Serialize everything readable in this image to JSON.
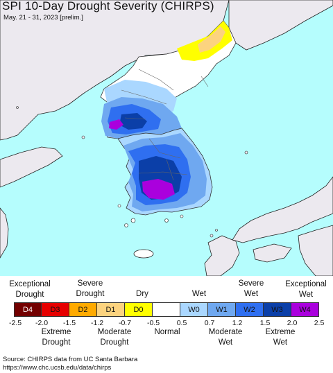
{
  "title": "SPI 10-Day Drought Severity (CHIRPS)",
  "subtitle": "May. 21 - 31, 2023 [prelim.]",
  "legend": {
    "top_labels": [
      {
        "id": "exceptional-drought",
        "text": "Exceptional\nDrought"
      },
      {
        "id": "severe-drought",
        "text": "Severe\nDrought"
      },
      {
        "id": "dry",
        "text": "Dry"
      },
      {
        "id": "wet",
        "text": "Wet"
      },
      {
        "id": "severe-wet",
        "text": "Severe\nWet"
      },
      {
        "id": "exceptional-wet",
        "text": "Exceptional\nWet"
      }
    ],
    "bottom_labels": [
      {
        "id": "extreme-drought",
        "text": "Extreme\nDrought"
      },
      {
        "id": "moderate-drought",
        "text": "Moderate\nDrought"
      },
      {
        "id": "normal",
        "text": "Normal"
      },
      {
        "id": "moderate-wet",
        "text": "Moderate\nWet"
      },
      {
        "id": "extreme-wet",
        "text": "Extreme\nWet"
      }
    ],
    "classes": [
      {
        "label": "D4",
        "color": "#730000",
        "text_color": "#ffffff"
      },
      {
        "label": "D3",
        "color": "#e60000",
        "text_color": "#111111"
      },
      {
        "label": "D2",
        "color": "#ffaa00",
        "text_color": "#111111"
      },
      {
        "label": "D1",
        "color": "#fcd37f",
        "text_color": "#111111"
      },
      {
        "label": "D0",
        "color": "#ffff00",
        "text_color": "#111111"
      },
      {
        "label": "",
        "color": "#ffffff",
        "text_color": "#111111"
      },
      {
        "label": "W0",
        "color": "#aad7ff",
        "text_color": "#111111"
      },
      {
        "label": "W1",
        "color": "#6fa8f0",
        "text_color": "#111111"
      },
      {
        "label": "W2",
        "color": "#2f6ff0",
        "text_color": "#111111"
      },
      {
        "label": "W3",
        "color": "#0b3fa8",
        "text_color": "#111111"
      },
      {
        "label": "W4",
        "color": "#aa00dd",
        "text_color": "#111111"
      }
    ],
    "ticks": [
      "-2.5",
      "-2.0",
      "-1.5",
      "-1.2",
      "-0.7",
      "-0.5",
      "0.5",
      "0.7",
      "1.2",
      "1.5",
      "2.0",
      "2.5"
    ]
  },
  "source": {
    "line1": "Source: CHIRPS data from UC Santa Barbara",
    "line2": "https://www.chc.ucsb.edu/data/chirps"
  },
  "map": {
    "ocean_color": "#b5fdfd",
    "land_color": "#ece9ef",
    "no_data_color": "#ffffff"
  }
}
